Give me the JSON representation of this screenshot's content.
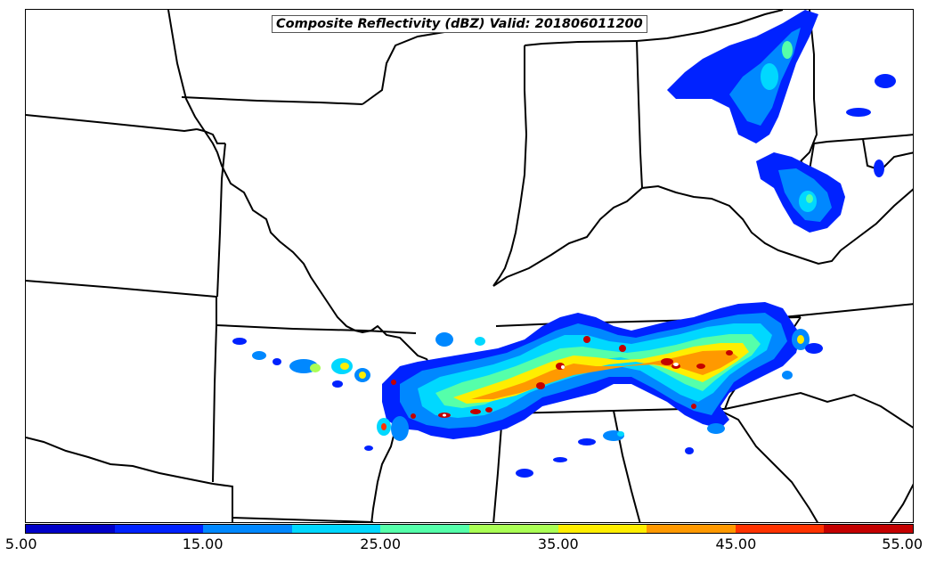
{
  "title": "Composite Reflectivity (dBZ) Valid: 201806011200",
  "colorbar": {
    "colors": [
      "#0000c8",
      "#0022ff",
      "#0088ff",
      "#00d8ff",
      "#55ffaa",
      "#aaff55",
      "#ffee00",
      "#ff9900",
      "#ff3300",
      "#c40000"
    ],
    "tick_labels": [
      "5.00",
      "15.00",
      "25.00",
      "35.00",
      "45.00",
      "55.00"
    ],
    "tick_values": [
      5,
      15,
      25,
      35,
      45,
      55
    ],
    "range": [
      5,
      55
    ]
  },
  "legend": {
    "levels_dbz": [
      5,
      10,
      15,
      20,
      25,
      30,
      35,
      40,
      45,
      50,
      55
    ]
  }
}
